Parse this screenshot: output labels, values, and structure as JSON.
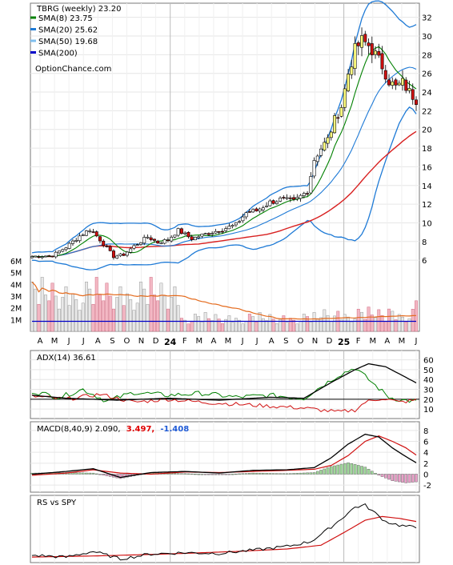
{
  "chart_data": [
    {
      "type": "candlestick",
      "title": "TBRG (weekly) 23.20",
      "watermark": "OptionChance.com",
      "y_ticks": [
        6,
        8,
        10,
        12,
        14,
        16,
        18,
        20,
        22,
        24,
        26,
        28,
        30,
        32
      ],
      "ylim": [
        4.3,
        33
      ],
      "x_months": [
        {
          "label": "A",
          "bold": false
        },
        {
          "label": "M",
          "bold": false
        },
        {
          "label": "J",
          "bold": false
        },
        {
          "label": "J",
          "bold": false
        },
        {
          "label": "A",
          "bold": false
        },
        {
          "label": "S",
          "bold": false
        },
        {
          "label": "O",
          "bold": false
        },
        {
          "label": "N",
          "bold": false
        },
        {
          "label": "D",
          "bold": false
        },
        {
          "label": "24",
          "bold": true
        },
        {
          "label": "F",
          "bold": false
        },
        {
          "label": "M",
          "bold": false
        },
        {
          "label": "A",
          "bold": false
        },
        {
          "label": "M",
          "bold": false
        },
        {
          "label": "J",
          "bold": false
        },
        {
          "label": "J",
          "bold": false
        },
        {
          "label": "A",
          "bold": false
        },
        {
          "label": "S",
          "bold": false
        },
        {
          "label": "O",
          "bold": false
        },
        {
          "label": "N",
          "bold": false
        },
        {
          "label": "D",
          "bold": false
        },
        {
          "label": "25",
          "bold": true
        },
        {
          "label": "F",
          "bold": false
        },
        {
          "label": "M",
          "bold": false
        },
        {
          "label": "A",
          "bold": false
        },
        {
          "label": "M",
          "bold": false
        },
        {
          "label": "J",
          "bold": false
        }
      ],
      "legend": [
        {
          "label": "SMA(8) 23.75",
          "color": "#008000"
        },
        {
          "label": "SMA(20) 25.62",
          "color": "#1e7ad6"
        },
        {
          "label": "SMA(50) 19.68",
          "color": "#7fbfef"
        },
        {
          "label": "SMA(200)",
          "color": "#0000c8"
        }
      ],
      "anchors": [
        [
          0,
          6.4
        ],
        [
          6,
          6.5
        ],
        [
          10,
          7.4
        ],
        [
          14,
          8.6
        ],
        [
          17,
          9.3
        ],
        [
          18,
          9.0
        ],
        [
          20,
          8.2
        ],
        [
          24,
          6.4
        ],
        [
          27,
          6.6
        ],
        [
          30,
          7.5
        ],
        [
          34,
          8.5
        ],
        [
          37,
          7.9
        ],
        [
          40,
          8.2
        ],
        [
          43,
          9.2
        ],
        [
          47,
          8.3
        ],
        [
          51,
          8.8
        ],
        [
          53,
          9.0
        ],
        [
          56,
          9.3
        ],
        [
          60,
          9.8
        ],
        [
          63,
          11.1
        ],
        [
          66,
          11.3
        ],
        [
          70,
          12.2
        ],
        [
          73,
          12.5
        ],
        [
          77,
          12.3
        ],
        [
          81,
          13.4
        ],
        [
          83,
          16.8
        ],
        [
          85,
          18.0
        ],
        [
          87,
          18.9
        ],
        [
          89,
          21.0
        ],
        [
          91,
          22.5
        ],
        [
          93,
          26.0
        ],
        [
          95,
          28.5
        ],
        [
          97,
          29.5
        ],
        [
          99,
          29.0
        ],
        [
          101,
          28.0
        ],
        [
          103,
          26.8
        ],
        [
          105,
          25.2
        ],
        [
          107,
          24.5
        ],
        [
          109,
          25.0
        ],
        [
          111,
          24.0
        ],
        [
          113,
          23.2
        ]
      ],
      "volume_y_ticks": [
        "1M",
        "2M",
        "3M",
        "4M",
        "5M",
        "6M"
      ],
      "volume_sma_line_level_m": 0.85,
      "volume_pattern_m": [
        4.2,
        3.6,
        2.3,
        4.6,
        3.1,
        2.6,
        4.1,
        3.0,
        1.9,
        2.9,
        3.8,
        2.2,
        3.2,
        2.7,
        1.8,
        2.4
      ],
      "total_weeks": 114
    },
    {
      "type": "line",
      "title": "ADX(14) 36.61",
      "y_ticks": [
        10,
        20,
        30,
        40,
        50,
        60
      ],
      "ylim": [
        2,
        67
      ],
      "anchors_adx": [
        [
          0,
          24
        ],
        [
          10,
          21
        ],
        [
          25,
          19
        ],
        [
          40,
          21
        ],
        [
          55,
          19
        ],
        [
          70,
          22
        ],
        [
          80,
          21
        ],
        [
          88,
          37
        ],
        [
          95,
          50
        ],
        [
          99,
          56
        ],
        [
          104,
          53
        ],
        [
          109,
          44
        ],
        [
          113,
          36.61
        ]
      ],
      "anchors_plus_di": [
        [
          0,
          28
        ],
        [
          8,
          22
        ],
        [
          15,
          30
        ],
        [
          22,
          18
        ],
        [
          30,
          27
        ],
        [
          40,
          24
        ],
        [
          50,
          26
        ],
        [
          60,
          22
        ],
        [
          70,
          24
        ],
        [
          80,
          21
        ],
        [
          85,
          33
        ],
        [
          90,
          44
        ],
        [
          95,
          52
        ],
        [
          97,
          46
        ],
        [
          101,
          34
        ],
        [
          105,
          22
        ],
        [
          109,
          19
        ],
        [
          113,
          18
        ]
      ],
      "anchors_minus_di": [
        [
          0,
          23
        ],
        [
          10,
          20
        ],
        [
          20,
          25
        ],
        [
          30,
          17
        ],
        [
          40,
          20
        ],
        [
          50,
          17
        ],
        [
          60,
          15
        ],
        [
          70,
          13
        ],
        [
          80,
          11
        ],
        [
          90,
          7
        ],
        [
          95,
          9
        ],
        [
          98,
          17
        ],
        [
          103,
          21
        ],
        [
          108,
          17
        ],
        [
          113,
          19
        ]
      ]
    },
    {
      "type": "line",
      "title": "MACD(8,40,9) 2.090,",
      "signal_label": "3.497,",
      "histogram_label": "-1.408",
      "y_ticks": [
        -2,
        0,
        2,
        4,
        6,
        8
      ],
      "ylim": [
        -3,
        9
      ],
      "anchors_macd": [
        [
          0,
          0
        ],
        [
          10,
          0.5
        ],
        [
          18,
          1.0
        ],
        [
          26,
          -0.6
        ],
        [
          35,
          0.3
        ],
        [
          45,
          0.5
        ],
        [
          55,
          0.2
        ],
        [
          65,
          0.7
        ],
        [
          75,
          0.8
        ],
        [
          83,
          1.2
        ],
        [
          88,
          3.0
        ],
        [
          93,
          5.5
        ],
        [
          98,
          7.3
        ],
        [
          102,
          6.8
        ],
        [
          106,
          4.8
        ],
        [
          110,
          3.2
        ],
        [
          113,
          2.09
        ]
      ],
      "anchors_signal": [
        [
          0,
          -0.2
        ],
        [
          10,
          0.2
        ],
        [
          18,
          0.8
        ],
        [
          26,
          0.2
        ],
        [
          35,
          0.0
        ],
        [
          45,
          0.4
        ],
        [
          55,
          0.3
        ],
        [
          65,
          0.5
        ],
        [
          75,
          0.7
        ],
        [
          83,
          0.9
        ],
        [
          88,
          1.6
        ],
        [
          93,
          3.4
        ],
        [
          98,
          6.0
        ],
        [
          102,
          7.0
        ],
        [
          106,
          6.0
        ],
        [
          110,
          4.8
        ],
        [
          113,
          3.497
        ]
      ]
    },
    {
      "type": "line",
      "title": "RS vs SPY",
      "anchors_rs": [
        [
          0,
          0.08
        ],
        [
          10,
          0.05
        ],
        [
          18,
          0.14
        ],
        [
          26,
          0.02
        ],
        [
          35,
          0.1
        ],
        [
          45,
          0.12
        ],
        [
          55,
          0.11
        ],
        [
          65,
          0.16
        ],
        [
          75,
          0.22
        ],
        [
          82,
          0.3
        ],
        [
          86,
          0.45
        ],
        [
          90,
          0.62
        ],
        [
          95,
          0.85
        ],
        [
          98,
          0.88
        ],
        [
          101,
          0.75
        ],
        [
          104,
          0.62
        ],
        [
          108,
          0.56
        ],
        [
          113,
          0.52
        ]
      ],
      "anchors_rs_avg": [
        [
          0,
          0.05
        ],
        [
          20,
          0.07
        ],
        [
          40,
          0.1
        ],
        [
          60,
          0.14
        ],
        [
          75,
          0.18
        ],
        [
          85,
          0.24
        ],
        [
          92,
          0.45
        ],
        [
          98,
          0.64
        ],
        [
          103,
          0.7
        ],
        [
          108,
          0.67
        ],
        [
          113,
          0.62
        ]
      ]
    }
  ]
}
